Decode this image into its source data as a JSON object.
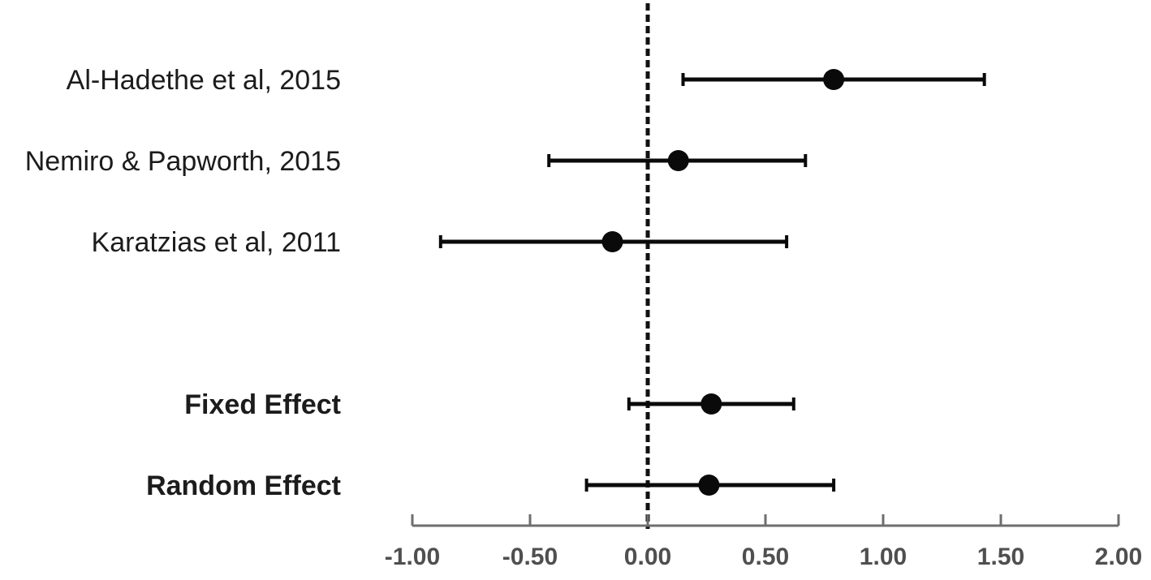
{
  "figure": {
    "background_color": "#ffffff"
  },
  "chart_data": {
    "type": "scatter",
    "subtype": "forest-plot",
    "title": "",
    "xlabel": "",
    "ylabel": "",
    "rows": [
      {
        "label": "Al-Hadethe et al, 2015",
        "estimate": 0.79,
        "ci_low": 0.15,
        "ci_high": 1.43,
        "summary": false
      },
      {
        "label": "Nemiro & Papworth, 2015",
        "estimate": 0.13,
        "ci_low": -0.42,
        "ci_high": 0.67,
        "summary": false
      },
      {
        "label": "Karatzias et al, 2011",
        "estimate": -0.15,
        "ci_low": -0.88,
        "ci_high": 0.59,
        "summary": false
      },
      {
        "label": "Fixed Effect",
        "estimate": 0.27,
        "ci_low": -0.08,
        "ci_high": 0.62,
        "summary": true
      },
      {
        "label": "Random Effect",
        "estimate": 0.26,
        "ci_low": -0.26,
        "ci_high": 0.79,
        "summary": true
      }
    ],
    "x_axis": {
      "min": -1.0,
      "max": 2.0,
      "tick_values": [
        -1.0,
        -0.5,
        0.0,
        0.5,
        1.0,
        1.5,
        2.0
      ],
      "tick_labels": [
        "-1.00",
        "-0.50",
        "0.00",
        "0.50",
        "1.00",
        "1.50",
        "2.00"
      ],
      "grid": false
    },
    "zero_line": {
      "value": 0.0,
      "style": "dashed"
    },
    "legend": {
      "visible": false
    },
    "colors": {
      "marker": "#0a0a0a",
      "ci_line": "#0a0a0a",
      "zero_line": "#111111",
      "axis_line": "#6e6e6e",
      "tick_label": "#4f4f4f",
      "study_label": "#1c1c1c"
    }
  }
}
